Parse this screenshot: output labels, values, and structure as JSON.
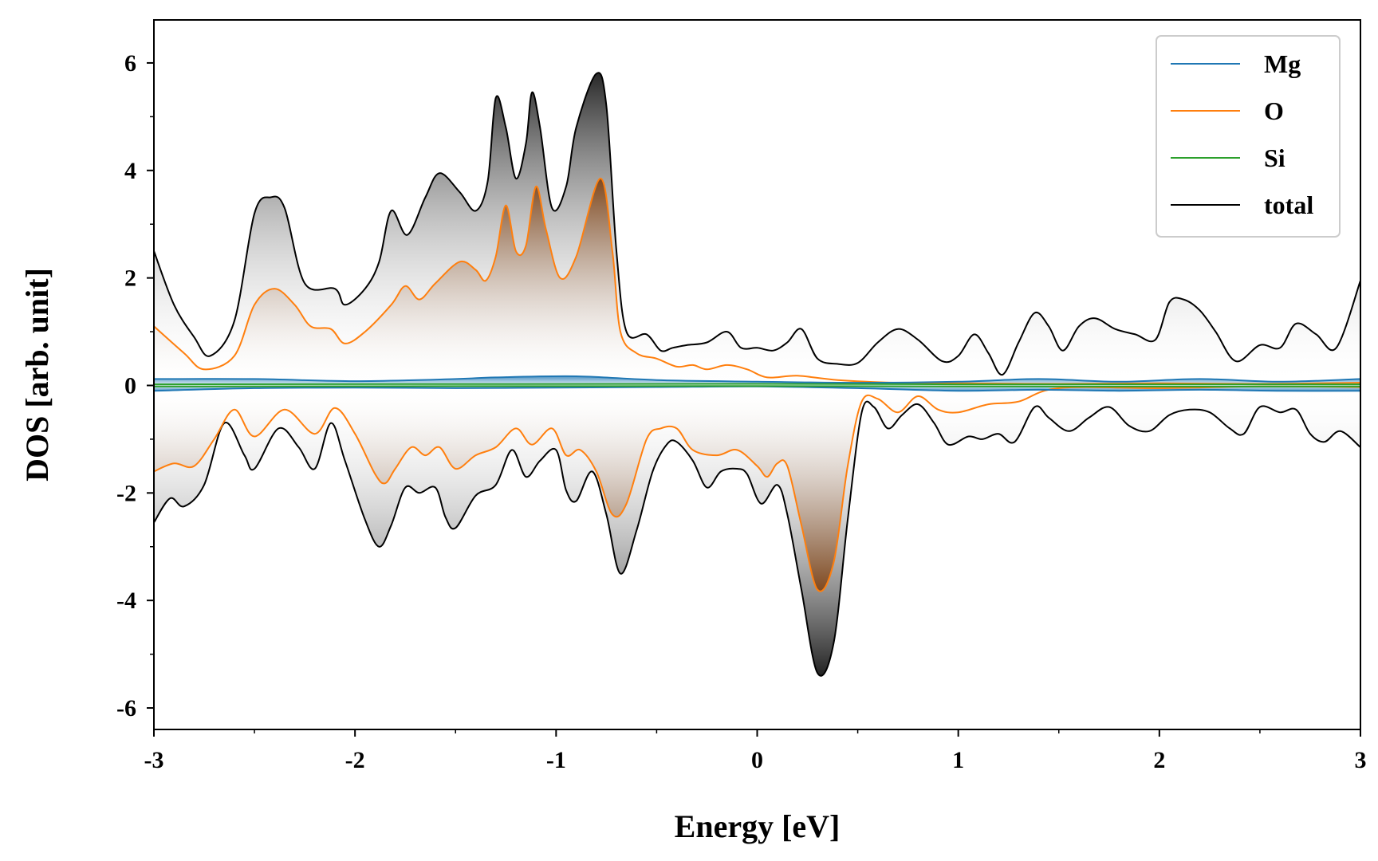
{
  "chart_data": {
    "type": "line",
    "title": "",
    "xlabel": "Energy [eV]",
    "ylabel": "DOS [arb. unit]",
    "xlim": [
      -3,
      3
    ],
    "ylim": [
      -6.4,
      6.8
    ],
    "x_ticks": [
      -3,
      -2,
      -1,
      0,
      1,
      2,
      3
    ],
    "x_tick_labels": [
      "-3",
      "-2",
      "-1",
      "0",
      "1",
      "2",
      "3"
    ],
    "y_ticks": [
      -6,
      -4,
      -2,
      0,
      2,
      4,
      6
    ],
    "y_tick_labels": [
      "-6",
      "-4",
      "-2",
      "0",
      "2",
      "4",
      "6"
    ],
    "grid": false,
    "legend_position": "top-right",
    "fill": "gradient from zero line to each curve",
    "series": [
      {
        "name": "Mg",
        "color": "#1f77b4",
        "up": [
          [
            -3,
            0.12
          ],
          [
            -2.5,
            0.12
          ],
          [
            -2,
            0.08
          ],
          [
            -1.5,
            0.12
          ],
          [
            -1.3,
            0.15
          ],
          [
            -0.9,
            0.17
          ],
          [
            -0.5,
            0.1
          ],
          [
            0,
            0.07
          ],
          [
            0.5,
            0.05
          ],
          [
            1,
            0.07
          ],
          [
            1.4,
            0.12
          ],
          [
            1.8,
            0.07
          ],
          [
            2.2,
            0.12
          ],
          [
            2.6,
            0.07
          ],
          [
            3,
            0.12
          ]
        ],
        "down": [
          [
            -3,
            -0.1
          ],
          [
            -2.5,
            -0.05
          ],
          [
            -2,
            -0.04
          ],
          [
            -1.5,
            -0.05
          ],
          [
            -1,
            -0.04
          ],
          [
            -0.5,
            -0.03
          ],
          [
            0,
            -0.02
          ],
          [
            0.5,
            -0.05
          ],
          [
            1,
            -0.1
          ],
          [
            1.4,
            -0.08
          ],
          [
            1.8,
            -0.1
          ],
          [
            2.2,
            -0.08
          ],
          [
            2.6,
            -0.1
          ],
          [
            3,
            -0.1
          ]
        ]
      },
      {
        "name": "O",
        "color": "#ff7f0e",
        "up": [
          [
            -3,
            1.1
          ],
          [
            -2.85,
            0.6
          ],
          [
            -2.75,
            0.3
          ],
          [
            -2.6,
            0.55
          ],
          [
            -2.5,
            1.5
          ],
          [
            -2.4,
            1.8
          ],
          [
            -2.3,
            1.5
          ],
          [
            -2.22,
            1.1
          ],
          [
            -2.12,
            1.05
          ],
          [
            -2.05,
            0.78
          ],
          [
            -1.95,
            1.0
          ],
          [
            -1.82,
            1.5
          ],
          [
            -1.75,
            1.85
          ],
          [
            -1.68,
            1.6
          ],
          [
            -1.6,
            1.9
          ],
          [
            -1.48,
            2.3
          ],
          [
            -1.4,
            2.15
          ],
          [
            -1.35,
            1.95
          ],
          [
            -1.3,
            2.4
          ],
          [
            -1.25,
            3.35
          ],
          [
            -1.2,
            2.5
          ],
          [
            -1.15,
            2.6
          ],
          [
            -1.1,
            3.7
          ],
          [
            -1.05,
            2.9
          ],
          [
            -0.98,
            2.0
          ],
          [
            -0.9,
            2.4
          ],
          [
            -0.78,
            3.85
          ],
          [
            -0.72,
            2.5
          ],
          [
            -0.68,
            1.0
          ],
          [
            -0.6,
            0.6
          ],
          [
            -0.5,
            0.5
          ],
          [
            -0.4,
            0.35
          ],
          [
            -0.32,
            0.38
          ],
          [
            -0.25,
            0.3
          ],
          [
            -0.15,
            0.38
          ],
          [
            -0.05,
            0.3
          ],
          [
            0.05,
            0.15
          ],
          [
            0.2,
            0.18
          ],
          [
            0.4,
            0.1
          ],
          [
            0.7,
            0.05
          ],
          [
            1,
            0.04
          ],
          [
            1.5,
            0.03
          ],
          [
            2,
            0.04
          ],
          [
            2.5,
            0.03
          ],
          [
            3,
            0.05
          ]
        ],
        "down": [
          [
            -3,
            -1.6
          ],
          [
            -2.9,
            -1.45
          ],
          [
            -2.8,
            -1.5
          ],
          [
            -2.7,
            -1.0
          ],
          [
            -2.6,
            -0.45
          ],
          [
            -2.5,
            -0.95
          ],
          [
            -2.35,
            -0.45
          ],
          [
            -2.2,
            -0.9
          ],
          [
            -2.1,
            -0.42
          ],
          [
            -2.0,
            -0.9
          ],
          [
            -1.9,
            -1.65
          ],
          [
            -1.85,
            -1.82
          ],
          [
            -1.8,
            -1.55
          ],
          [
            -1.72,
            -1.15
          ],
          [
            -1.65,
            -1.3
          ],
          [
            -1.58,
            -1.15
          ],
          [
            -1.5,
            -1.55
          ],
          [
            -1.4,
            -1.3
          ],
          [
            -1.3,
            -1.15
          ],
          [
            -1.2,
            -0.8
          ],
          [
            -1.12,
            -1.1
          ],
          [
            -1.02,
            -0.8
          ],
          [
            -0.95,
            -1.3
          ],
          [
            -0.88,
            -1.2
          ],
          [
            -0.8,
            -1.6
          ],
          [
            -0.72,
            -2.4
          ],
          [
            -0.65,
            -2.2
          ],
          [
            -0.55,
            -1.0
          ],
          [
            -0.48,
            -0.8
          ],
          [
            -0.4,
            -0.8
          ],
          [
            -0.32,
            -1.2
          ],
          [
            -0.2,
            -1.3
          ],
          [
            -0.1,
            -1.2
          ],
          [
            0.0,
            -1.5
          ],
          [
            0.05,
            -1.7
          ],
          [
            0.1,
            -1.45
          ],
          [
            0.15,
            -1.5
          ],
          [
            0.22,
            -2.6
          ],
          [
            0.3,
            -3.8
          ],
          [
            0.38,
            -3.3
          ],
          [
            0.45,
            -1.5
          ],
          [
            0.52,
            -0.3
          ],
          [
            0.6,
            -0.25
          ],
          [
            0.7,
            -0.5
          ],
          [
            0.8,
            -0.2
          ],
          [
            0.9,
            -0.45
          ],
          [
            1.0,
            -0.5
          ],
          [
            1.15,
            -0.35
          ],
          [
            1.3,
            -0.3
          ],
          [
            1.5,
            -0.05
          ],
          [
            2,
            -0.05
          ],
          [
            2.5,
            -0.02
          ],
          [
            3,
            -0.03
          ]
        ]
      },
      {
        "name": "Si",
        "color": "#2ca02c",
        "up": [
          [
            -3,
            0.02
          ],
          [
            0,
            0.03
          ],
          [
            1,
            0.02
          ],
          [
            3,
            0.02
          ]
        ],
        "down": [
          [
            -3,
            -0.02
          ],
          [
            0,
            -0.01
          ],
          [
            1,
            -0.02
          ],
          [
            3,
            -0.02
          ]
        ]
      },
      {
        "name": "total",
        "color": "#000000",
        "up": [
          [
            -3,
            2.5
          ],
          [
            -2.9,
            1.5
          ],
          [
            -2.8,
            0.9
          ],
          [
            -2.72,
            0.55
          ],
          [
            -2.6,
            1.2
          ],
          [
            -2.5,
            3.2
          ],
          [
            -2.42,
            3.5
          ],
          [
            -2.35,
            3.3
          ],
          [
            -2.25,
            1.9
          ],
          [
            -2.1,
            1.8
          ],
          [
            -2.05,
            1.5
          ],
          [
            -1.95,
            1.8
          ],
          [
            -1.88,
            2.3
          ],
          [
            -1.82,
            3.25
          ],
          [
            -1.74,
            2.8
          ],
          [
            -1.65,
            3.5
          ],
          [
            -1.58,
            3.95
          ],
          [
            -1.48,
            3.6
          ],
          [
            -1.4,
            3.25
          ],
          [
            -1.34,
            3.8
          ],
          [
            -1.3,
            5.35
          ],
          [
            -1.25,
            4.8
          ],
          [
            -1.2,
            3.85
          ],
          [
            -1.15,
            4.5
          ],
          [
            -1.12,
            5.45
          ],
          [
            -1.08,
            4.8
          ],
          [
            -1.02,
            3.3
          ],
          [
            -0.95,
            3.7
          ],
          [
            -0.9,
            4.8
          ],
          [
            -0.8,
            5.8
          ],
          [
            -0.75,
            5.2
          ],
          [
            -0.7,
            2.5
          ],
          [
            -0.65,
            1.0
          ],
          [
            -0.55,
            0.95
          ],
          [
            -0.48,
            0.65
          ],
          [
            -0.42,
            0.7
          ],
          [
            -0.35,
            0.75
          ],
          [
            -0.25,
            0.8
          ],
          [
            -0.15,
            1.0
          ],
          [
            -0.08,
            0.7
          ],
          [
            0,
            0.7
          ],
          [
            0.08,
            0.65
          ],
          [
            0.15,
            0.8
          ],
          [
            0.22,
            1.05
          ],
          [
            0.3,
            0.5
          ],
          [
            0.4,
            0.4
          ],
          [
            0.5,
            0.42
          ],
          [
            0.6,
            0.8
          ],
          [
            0.7,
            1.05
          ],
          [
            0.8,
            0.85
          ],
          [
            0.92,
            0.45
          ],
          [
            1.0,
            0.55
          ],
          [
            1.08,
            0.95
          ],
          [
            1.15,
            0.6
          ],
          [
            1.22,
            0.2
          ],
          [
            1.3,
            0.8
          ],
          [
            1.38,
            1.35
          ],
          [
            1.45,
            1.1
          ],
          [
            1.52,
            0.65
          ],
          [
            1.6,
            1.1
          ],
          [
            1.68,
            1.25
          ],
          [
            1.78,
            1.05
          ],
          [
            1.88,
            0.95
          ],
          [
            1.98,
            0.85
          ],
          [
            2.05,
            1.55
          ],
          [
            2.12,
            1.6
          ],
          [
            2.2,
            1.4
          ],
          [
            2.28,
            1.0
          ],
          [
            2.38,
            0.45
          ],
          [
            2.5,
            0.75
          ],
          [
            2.6,
            0.7
          ],
          [
            2.68,
            1.15
          ],
          [
            2.78,
            0.95
          ],
          [
            2.88,
            0.7
          ],
          [
            3.0,
            1.95
          ]
        ],
        "down": [
          [
            -3,
            -2.55
          ],
          [
            -2.92,
            -2.1
          ],
          [
            -2.85,
            -2.25
          ],
          [
            -2.75,
            -1.85
          ],
          [
            -2.65,
            -0.7
          ],
          [
            -2.55,
            -1.3
          ],
          [
            -2.5,
            -1.55
          ],
          [
            -2.38,
            -0.8
          ],
          [
            -2.28,
            -1.15
          ],
          [
            -2.2,
            -1.55
          ],
          [
            -2.12,
            -0.7
          ],
          [
            -2.05,
            -1.4
          ],
          [
            -1.95,
            -2.5
          ],
          [
            -1.88,
            -3.0
          ],
          [
            -1.82,
            -2.6
          ],
          [
            -1.75,
            -1.9
          ],
          [
            -1.68,
            -2.0
          ],
          [
            -1.6,
            -1.9
          ],
          [
            -1.55,
            -2.45
          ],
          [
            -1.5,
            -2.65
          ],
          [
            -1.4,
            -2.05
          ],
          [
            -1.3,
            -1.85
          ],
          [
            -1.22,
            -1.2
          ],
          [
            -1.15,
            -1.7
          ],
          [
            -1.08,
            -1.4
          ],
          [
            -1.0,
            -1.2
          ],
          [
            -0.95,
            -1.95
          ],
          [
            -0.9,
            -2.15
          ],
          [
            -0.82,
            -1.6
          ],
          [
            -0.75,
            -2.4
          ],
          [
            -0.68,
            -3.5
          ],
          [
            -0.6,
            -2.7
          ],
          [
            -0.52,
            -1.6
          ],
          [
            -0.45,
            -1.1
          ],
          [
            -0.4,
            -1.05
          ],
          [
            -0.32,
            -1.4
          ],
          [
            -0.25,
            -1.9
          ],
          [
            -0.18,
            -1.6
          ],
          [
            -0.1,
            -1.55
          ],
          [
            -0.05,
            -1.65
          ],
          [
            0.02,
            -2.2
          ],
          [
            0.1,
            -1.85
          ],
          [
            0.15,
            -2.4
          ],
          [
            0.22,
            -3.8
          ],
          [
            0.3,
            -5.35
          ],
          [
            0.38,
            -4.8
          ],
          [
            0.45,
            -2.5
          ],
          [
            0.52,
            -0.5
          ],
          [
            0.58,
            -0.4
          ],
          [
            0.65,
            -0.8
          ],
          [
            0.72,
            -0.55
          ],
          [
            0.8,
            -0.35
          ],
          [
            0.88,
            -0.7
          ],
          [
            0.95,
            -1.1
          ],
          [
            1.05,
            -0.95
          ],
          [
            1.12,
            -1.0
          ],
          [
            1.2,
            -0.9
          ],
          [
            1.28,
            -1.05
          ],
          [
            1.38,
            -0.4
          ],
          [
            1.45,
            -0.6
          ],
          [
            1.55,
            -0.85
          ],
          [
            1.65,
            -0.6
          ],
          [
            1.75,
            -0.4
          ],
          [
            1.85,
            -0.75
          ],
          [
            1.95,
            -0.85
          ],
          [
            2.05,
            -0.55
          ],
          [
            2.15,
            -0.45
          ],
          [
            2.25,
            -0.5
          ],
          [
            2.35,
            -0.8
          ],
          [
            2.42,
            -0.9
          ],
          [
            2.5,
            -0.4
          ],
          [
            2.6,
            -0.5
          ],
          [
            2.68,
            -0.45
          ],
          [
            2.75,
            -0.9
          ],
          [
            2.82,
            -1.05
          ],
          [
            2.9,
            -0.85
          ],
          [
            3.0,
            -1.15
          ]
        ]
      }
    ]
  }
}
